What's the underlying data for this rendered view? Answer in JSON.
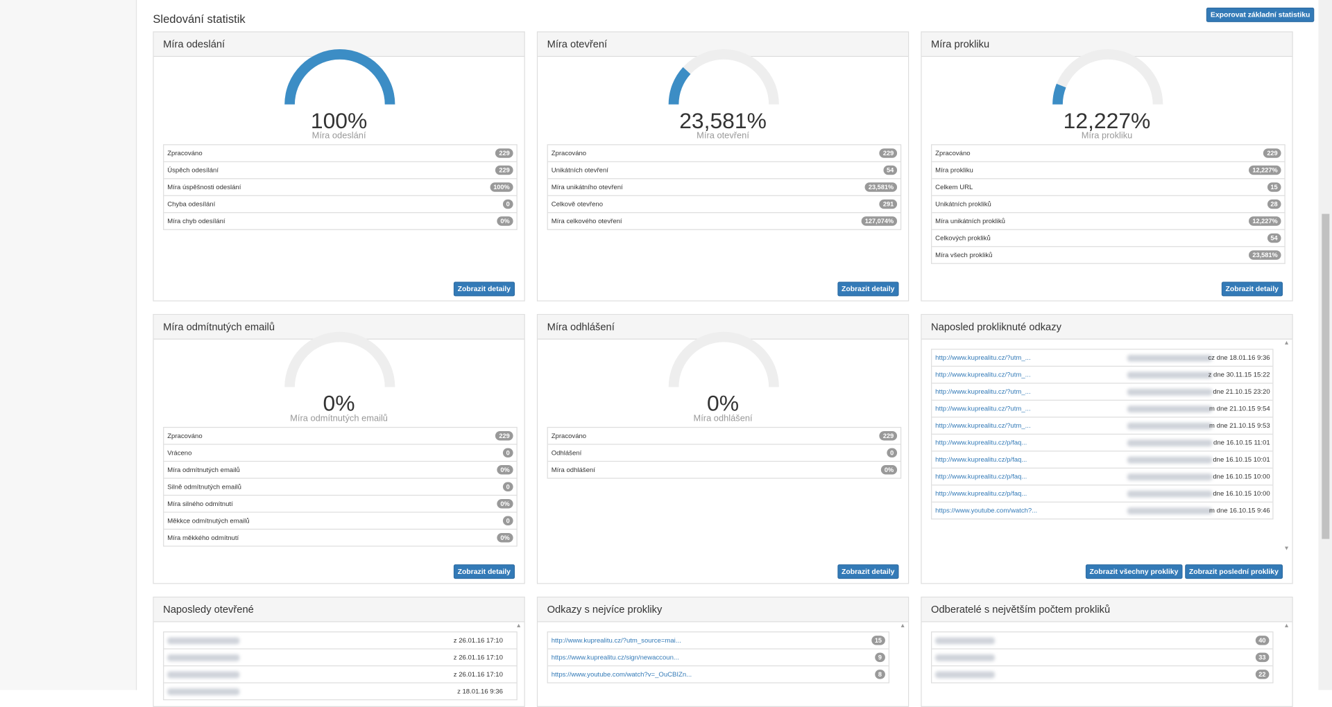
{
  "header": {
    "title": "Sledování statistik",
    "export_button": "Exporovat základní statistiku"
  },
  "panels": [
    {
      "title": "Míra odeslání",
      "gauge": {
        "value": "100%",
        "label": "Míra odeslání"
      },
      "rows": [
        {
          "label": "Zpracováno",
          "value": 229
        },
        {
          "label": "Úspěch odesílání",
          "value": 229
        },
        {
          "label": "Míra úspěšnosti odeslání",
          "value": "100%"
        },
        {
          "label": "Chyba odesílání",
          "value": 0
        },
        {
          "label": "Míra chyb odesílání",
          "value": "0%"
        }
      ],
      "buttons": [
        "Zobrazit detaily"
      ]
    },
    {
      "title": "Míra otevření",
      "gauge": {
        "value": "23,581%",
        "label": "Míra otevření"
      },
      "rows": [
        {
          "label": "Zpracováno",
          "value": 229
        },
        {
          "label": "Unikátních otevření",
          "value": 54
        },
        {
          "label": "Míra unikátního otevření",
          "value": "23,581%"
        },
        {
          "label": "Celkově otevřeno",
          "value": 291
        },
        {
          "label": "Míra celkového otevření",
          "value": "127,074%"
        }
      ],
      "buttons": [
        "Zobrazit detaily"
      ]
    },
    {
      "title": "Míra prokliku",
      "gauge": {
        "value": "12,227%",
        "label": "Míra prokliku"
      },
      "rows": [
        {
          "label": "Zpracováno",
          "value": 229
        },
        {
          "label": "Míra prokliku",
          "value": "12,227%"
        },
        {
          "label": "Celkem URL",
          "value": 15
        },
        {
          "label": "Unikátních prokliků",
          "value": 28
        },
        {
          "label": "Míra unikátních prokliků",
          "value": "12,227%"
        },
        {
          "label": "Celkových prokliků",
          "value": 54
        },
        {
          "label": "Míra všech prokliků",
          "value": "23,581%"
        }
      ],
      "buttons": [
        "Zobrazit detaily"
      ]
    },
    {
      "title": "Míra odmítnutých emailů",
      "gauge": {
        "value": "0%",
        "label": "Míra odmítnutých emailů"
      },
      "rows": [
        {
          "label": "Zpracováno",
          "value": 229
        },
        {
          "label": "Vráceno",
          "value": 0
        },
        {
          "label": "Míra odmítnutých emailů",
          "value": "0%"
        },
        {
          "label": "Silně odmítnutých emailů",
          "value": 0
        },
        {
          "label": "Míra silného odmítnutí",
          "value": "0%"
        },
        {
          "label": "Měkkce odmítnutých emailů",
          "value": 0
        },
        {
          "label": "Míra měkkého odmítnutí",
          "value": "0%"
        }
      ],
      "buttons": [
        "Zobrazit detaily"
      ]
    },
    {
      "title": "Míra odhlášení",
      "gauge": {
        "value": "0%",
        "label": "Míra odhlášení"
      },
      "rows": [
        {
          "label": "Zpracováno",
          "value": 229
        },
        {
          "label": "Odhlášení",
          "value": 0
        },
        {
          "label": "Míra odhlášení",
          "value": "0%"
        }
      ],
      "buttons": [
        "Zobrazit detaily"
      ]
    },
    {
      "title": "Naposled prokliknuté odkazy",
      "links": [
        {
          "url": "http://www.kuprealitu.cz/?utm_...",
          "date": "cz dne 18.01.16 9:36"
        },
        {
          "url": "http://www.kuprealitu.cz/?utm_...",
          "date": "z dne 30.11.15 15:22"
        },
        {
          "url": "http://www.kuprealitu.cz/?utm_...",
          "date": "dne 21.10.15 23:20"
        },
        {
          "url": "http://www.kuprealitu.cz/?utm_...",
          "date": "m dne 21.10.15 9:54"
        },
        {
          "url": "http://www.kuprealitu.cz/?utm_...",
          "date": "m dne 21.10.15 9:53"
        },
        {
          "url": "http://www.kuprealitu.cz/p/faq...",
          "date": "dne 16.10.15 11:01"
        },
        {
          "url": "http://www.kuprealitu.cz/p/faq...",
          "date": "dne 16.10.15 10:01"
        },
        {
          "url": "http://www.kuprealitu.cz/p/faq...",
          "date": "dne 16.10.15 10:00"
        },
        {
          "url": "http://www.kuprealitu.cz/p/faq...",
          "date": "dne 16.10.15 10:00"
        },
        {
          "url": "https://www.youtube.com/watch?...",
          "date": "m dne 16.10.15 9:46"
        }
      ],
      "buttons": [
        "Zobrazit všechny prokliky",
        "Zobrazit poslední prokliky"
      ]
    },
    {
      "title": "Naposledy otevřené",
      "opened": [
        "z 26.01.16 17:10",
        "z 26.01.16 17:10",
        "z 26.01.16 17:10",
        "z 18.01.16 9:36"
      ]
    },
    {
      "title": "Odkazy s nejvíce prokliky",
      "top_links": [
        {
          "url": "http://www.kuprealitu.cz/?utm_source=mai...",
          "value": 15
        },
        {
          "url": "https://www.kuprealitu.cz/sign/newaccoun...",
          "value": 9
        },
        {
          "url": "https://www.youtube.com/watch?v=_OuCBIZn...",
          "value": 8
        }
      ]
    },
    {
      "title": "Odberatelé s největším počtem prokliků",
      "subscribers": [
        40,
        33,
        22
      ]
    }
  ]
}
